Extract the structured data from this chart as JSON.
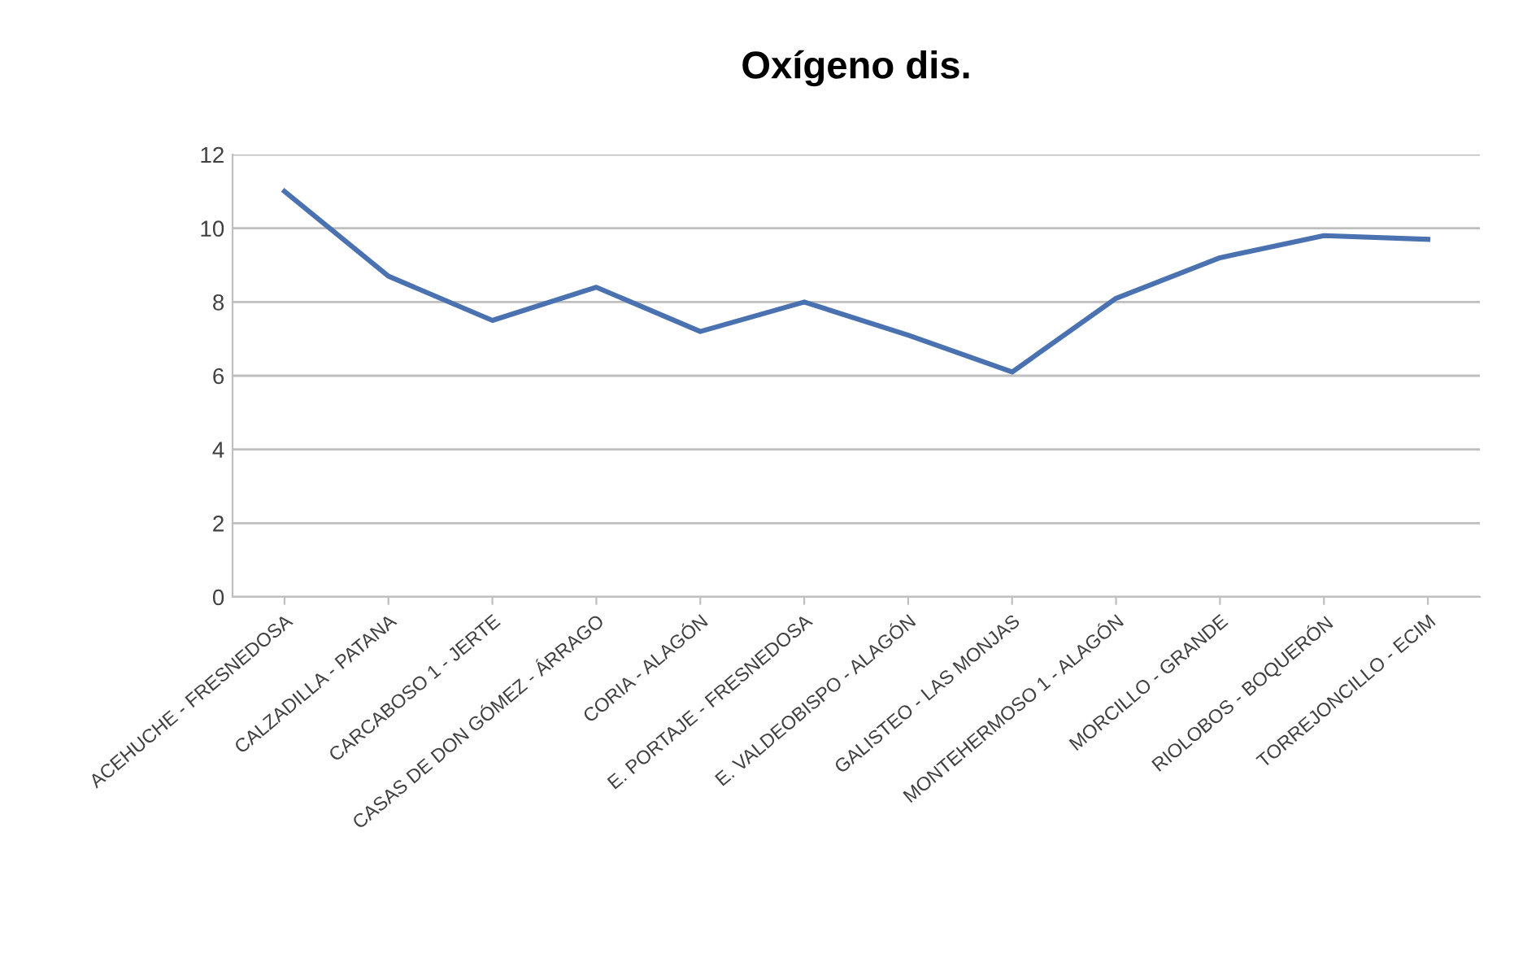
{
  "chart_data": {
    "type": "line",
    "title": "Oxígeno dis.",
    "categories": [
      "ACEHUCHE - FRESNEDOSA",
      "CALZADILLA - PATANA",
      "CARCABOSO 1 - JERTE",
      "CASAS DE DON GÓMEZ - ÁRRAGO",
      "CORIA - ALAGÓN",
      "E. PORTAJE - FRESNEDOSA",
      "E. VALDEOBISPO - ALAGÓN",
      "GALISTEO - LAS MONJAS",
      "MONTEHERMOSO 1 - ALAGÓN",
      "MORCILLO - GRANDE",
      "RIOLOBOS - BOQUERÓN",
      "TORREJONCILLO - ECIM"
    ],
    "series": [
      {
        "color": "#4a72b0",
        "values": [
          11.0,
          8.7,
          7.5,
          8.4,
          7.2,
          8.0,
          7.1,
          6.1,
          8.1,
          9.2,
          9.8,
          9.7
        ]
      }
    ],
    "ylim": [
      0,
      12
    ],
    "yticks": [
      0,
      2,
      4,
      6,
      8,
      10,
      12
    ],
    "grid": "y",
    "marker": "none",
    "line_style": "solid"
  }
}
